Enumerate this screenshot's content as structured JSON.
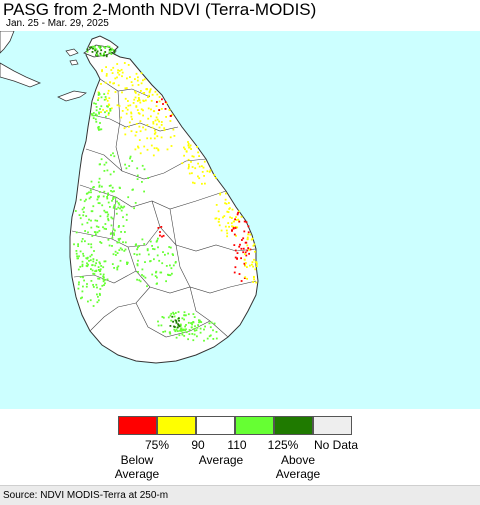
{
  "header": {
    "title": "PASG from 2-Month NDVI (Terra-MODIS)",
    "date_range": "Jan. 25 - Mar. 29, 2025"
  },
  "map": {
    "ocean_color": "#ccffff",
    "land_color": "#ffffff",
    "boundary_color": "#333333"
  },
  "legend": {
    "swatches": [
      {
        "color": "#ff0000",
        "name": "below-75"
      },
      {
        "color": "#ffff00",
        "name": "75-90"
      },
      {
        "color": "#ffffff",
        "name": "90-110"
      },
      {
        "color": "#66ff33",
        "name": "110-125"
      },
      {
        "color": "#1f7a00",
        "name": "above-125"
      },
      {
        "color": "#eeeeee",
        "name": "no-data"
      }
    ],
    "ticks": [
      "75%",
      "90",
      "110",
      "125%",
      "No Data"
    ],
    "categories": [
      {
        "line1": "Below",
        "line2": "Average"
      },
      {
        "line1": "Average",
        "line2": ""
      },
      {
        "line1": "Above",
        "line2": "Average"
      }
    ]
  },
  "footer": {
    "source": "Source: NDVI MODIS-Terra at 250-m"
  }
}
